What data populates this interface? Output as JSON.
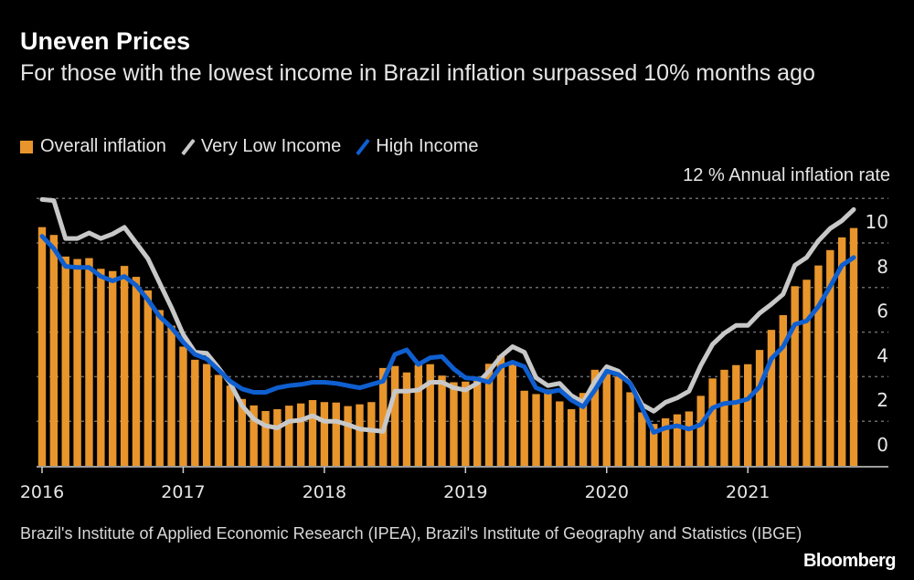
{
  "title": "Uneven Prices",
  "subtitle": "For those with the lowest income in Brazil inflation surpassed 10% months ago",
  "legend": [
    {
      "label": "Overall inflation",
      "color": "#e8952c",
      "type": "bar"
    },
    {
      "label": "Very Low Income",
      "color": "#c8c8c8",
      "type": "line"
    },
    {
      "label": "High Income",
      "color": "#0f5fd0",
      "type": "line"
    }
  ],
  "unit_label": "12 % Annual inflation rate",
  "footer": "Brazil's Institute of Applied Economic Research (IPEA), Brazil's Institute of Geography and Statistics (IBGE)",
  "logo": "Bloomberg",
  "chart_data": {
    "type": "bar+line",
    "x_start": "2016-01",
    "frequency": "monthly",
    "x_tick_labels": [
      "2016",
      "2017",
      "2018",
      "2019",
      "2020",
      "2021"
    ],
    "ylim": [
      0,
      12
    ],
    "y_ticks": [
      0,
      2,
      4,
      6,
      8,
      10,
      12
    ],
    "y_tick_labels": [
      "0",
      "2",
      "4",
      "6",
      "8",
      "10",
      "12"
    ],
    "ylabel": "% Annual inflation rate",
    "grid": true,
    "axis_side": "right",
    "legend_position": "top-left",
    "series": [
      {
        "name": "Overall inflation",
        "type": "bar",
        "color": "#e8952c",
        "values": [
          10.71,
          10.36,
          9.39,
          9.28,
          9.32,
          8.84,
          8.74,
          8.97,
          8.48,
          7.87,
          6.99,
          6.29,
          5.35,
          4.76,
          4.57,
          4.08,
          3.6,
          3.0,
          2.71,
          2.46,
          2.54,
          2.7,
          2.8,
          2.95,
          2.86,
          2.84,
          2.68,
          2.76,
          2.86,
          4.39,
          4.48,
          4.19,
          4.53,
          4.56,
          4.05,
          3.75,
          3.78,
          3.89,
          4.58,
          4.94,
          4.66,
          3.37,
          3.22,
          3.43,
          2.89,
          2.54,
          3.27,
          4.31,
          4.19,
          4.01,
          3.3,
          2.4,
          1.88,
          2.13,
          2.31,
          2.44,
          3.14,
          3.92,
          4.31,
          4.52,
          4.56,
          5.2,
          6.1,
          6.76,
          8.06,
          8.35,
          8.99,
          9.68,
          10.25,
          10.67
        ]
      },
      {
        "name": "Very Low Income",
        "type": "line",
        "color": "#c8c8c8",
        "values": [
          11.95,
          11.9,
          10.2,
          10.2,
          10.45,
          10.2,
          10.4,
          10.7,
          10.0,
          9.3,
          8.2,
          7.1,
          5.9,
          5.1,
          5.05,
          4.4,
          3.7,
          2.7,
          2.1,
          1.8,
          1.7,
          2.0,
          2.05,
          2.25,
          2.0,
          2.0,
          1.85,
          1.65,
          1.6,
          1.55,
          3.35,
          3.35,
          3.4,
          3.75,
          3.75,
          3.5,
          3.4,
          3.7,
          4.25,
          4.9,
          5.35,
          5.1,
          3.95,
          3.6,
          3.7,
          3.15,
          2.85,
          3.8,
          4.45,
          4.25,
          3.7,
          2.75,
          2.45,
          2.85,
          3.05,
          3.35,
          4.5,
          5.45,
          5.95,
          6.3,
          6.3,
          6.85,
          7.25,
          7.7,
          9.0,
          9.35,
          10.1,
          10.65,
          11.0,
          11.5
        ]
      },
      {
        "name": "High Income",
        "type": "line",
        "color": "#0f5fd0",
        "values": [
          10.3,
          9.75,
          8.95,
          8.9,
          8.9,
          8.5,
          8.3,
          8.5,
          8.1,
          7.45,
          6.7,
          6.2,
          5.55,
          5.0,
          4.8,
          4.3,
          3.8,
          3.45,
          3.3,
          3.3,
          3.5,
          3.6,
          3.65,
          3.75,
          3.75,
          3.7,
          3.6,
          3.5,
          3.65,
          3.8,
          5.0,
          5.2,
          4.55,
          4.85,
          4.9,
          4.35,
          3.95,
          3.9,
          3.75,
          4.45,
          4.65,
          4.45,
          3.5,
          3.3,
          3.4,
          2.95,
          2.65,
          3.4,
          4.25,
          4.1,
          3.7,
          2.6,
          1.5,
          1.7,
          1.8,
          1.65,
          1.85,
          2.6,
          2.8,
          2.85,
          3.0,
          3.55,
          4.8,
          5.35,
          6.35,
          6.5,
          7.15,
          8.05,
          9.0,
          9.35
        ]
      }
    ]
  }
}
